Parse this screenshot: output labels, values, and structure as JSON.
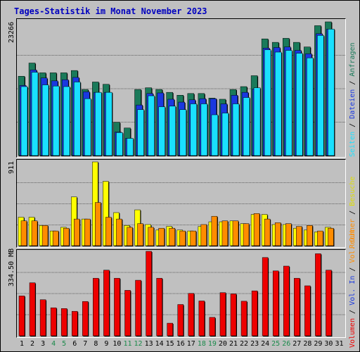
{
  "title": "Tages-Statistik im Monat November 2023",
  "colors": {
    "anfragen": "#1a7a5a",
    "dateien": "#1a38e0",
    "seiten": "#1ae0ff",
    "besuche": "#ffff00",
    "rechner": "#ff8c00",
    "vol_in": "#1a38e0",
    "vol_out": "#ff8c00",
    "volumen": "#ee0000",
    "weekend": "#1a8a4a",
    "weekday": "#000000"
  },
  "max_labels": {
    "hits": "23266",
    "visits": "911",
    "volume": "334.50 MB"
  },
  "legend_top": [
    "Anfragen",
    "Dateien",
    "Seiten"
  ],
  "legend_mid": [
    "Besuche",
    "Rechner"
  ],
  "legend_bot": [
    "Volumen",
    "Vol. In",
    "Vol. Out"
  ],
  "legend_sep": " / ",
  "chart_data": [
    {
      "type": "bar",
      "title": "Tages-Statistik im Monat November 2023",
      "categories": [
        "1",
        "2",
        "3",
        "4",
        "5",
        "6",
        "7",
        "8",
        "9",
        "10",
        "11",
        "12",
        "13",
        "14",
        "15",
        "16",
        "17",
        "18",
        "19",
        "20",
        "21",
        "22",
        "23",
        "24",
        "25",
        "26",
        "27",
        "28",
        "29",
        "30",
        "31"
      ],
      "weekend_days": [
        4,
        5,
        11,
        12,
        18,
        19,
        25,
        26
      ],
      "series": [
        {
          "name": "Anfragen",
          "values": [
            13800,
            16100,
            14400,
            14400,
            14400,
            14800,
            11500,
            12800,
            12400,
            5800,
            4800,
            11500,
            11800,
            11500,
            11000,
            10500,
            10800,
            10800,
            10000,
            9800,
            11500,
            12000,
            13900,
            20300,
            19700,
            20400,
            19700,
            18900,
            22600,
            23266,
            0
          ]
        },
        {
          "name": "Dateien",
          "values": [
            12200,
            14900,
            13500,
            13000,
            13200,
            13600,
            11100,
            11000,
            11000,
            4100,
            3000,
            8800,
            10800,
            10900,
            9800,
            9300,
            9700,
            9900,
            9900,
            9000,
            10500,
            11000,
            11600,
            18700,
            18800,
            18900,
            18300,
            17700,
            21200,
            22000,
            0
          ]
        },
        {
          "name": "Seiten",
          "values": [
            12000,
            14500,
            12300,
            12100,
            12000,
            12800,
            9900,
            11000,
            11000,
            4000,
            3000,
            8000,
            10400,
            8500,
            8600,
            8000,
            9000,
            9000,
            7100,
            7400,
            9000,
            10100,
            11800,
            18400,
            18000,
            18300,
            17800,
            17000,
            20900,
            22000,
            0
          ]
        }
      ],
      "ymax": 23266
    },
    {
      "type": "bar",
      "categories": [
        "1",
        "2",
        "3",
        "4",
        "5",
        "6",
        "7",
        "8",
        "9",
        "10",
        "11",
        "12",
        "13",
        "14",
        "15",
        "16",
        "17",
        "18",
        "19",
        "20",
        "21",
        "22",
        "23",
        "24",
        "25",
        "26",
        "27",
        "28",
        "29",
        "30",
        "31"
      ],
      "series": [
        {
          "name": "Besuche",
          "values": [
            310,
            310,
            220,
            160,
            200,
            530,
            290,
            911,
            700,
            360,
            220,
            390,
            230,
            170,
            210,
            170,
            160,
            210,
            260,
            260,
            270,
            240,
            340,
            340,
            230,
            230,
            190,
            170,
            150,
            200,
            0
          ]
        },
        {
          "name": "Rechner",
          "values": [
            270,
            270,
            220,
            160,
            190,
            290,
            290,
            470,
            310,
            290,
            200,
            240,
            200,
            190,
            190,
            160,
            160,
            230,
            320,
            270,
            270,
            240,
            350,
            290,
            250,
            240,
            210,
            220,
            160,
            190,
            0
          ]
        }
      ],
      "ymax": 911
    },
    {
      "type": "bar",
      "categories": [
        "1",
        "2",
        "3",
        "4",
        "5",
        "6",
        "7",
        "8",
        "9",
        "10",
        "11",
        "12",
        "13",
        "14",
        "15",
        "16",
        "17",
        "18",
        "19",
        "20",
        "21",
        "22",
        "23",
        "24",
        "25",
        "26",
        "27",
        "28",
        "29",
        "30",
        "31"
      ],
      "series": [
        {
          "name": "Volumen",
          "unit": "MB",
          "values": [
            158,
            210,
            143,
            111,
            108,
            97,
            136,
            228,
            260,
            228,
            180,
            220,
            334.5,
            228,
            50,
            124,
            168,
            138,
            73,
            171,
            166,
            137,
            178,
            310,
            257,
            276,
            228,
            198,
            325,
            260,
            0
          ]
        }
      ],
      "ymax": 334.5
    }
  ]
}
